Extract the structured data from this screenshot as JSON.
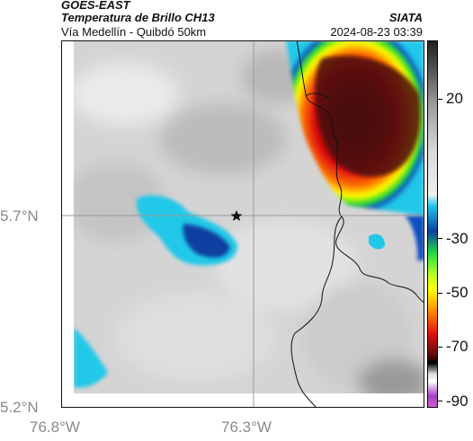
{
  "header": {
    "satellite": "GOES-EAST",
    "product": "Temperatura de Brillo CH13",
    "region": "Vía Medellín - Quibdó 50km",
    "organization": "SIATA",
    "timestamp": "2024-08-23 03:39"
  },
  "map": {
    "lat_labels": [
      "5.7°N",
      "5.2°N"
    ],
    "lon_labels": [
      "76.8°W",
      "76.3°W"
    ],
    "marker": "star-marker"
  },
  "colorbar": {
    "labels": [
      "20",
      "-30",
      "-50",
      "-70",
      "-90"
    ],
    "colors": {
      "dark_red": "#3a0a0a",
      "red": "#e01010",
      "orange": "#ff8800",
      "yellow": "#ffff00",
      "green": "#22dd22",
      "dark_blue": "#1040a0",
      "cyan": "#20c8e8",
      "grey": "#c8c8c8"
    }
  }
}
